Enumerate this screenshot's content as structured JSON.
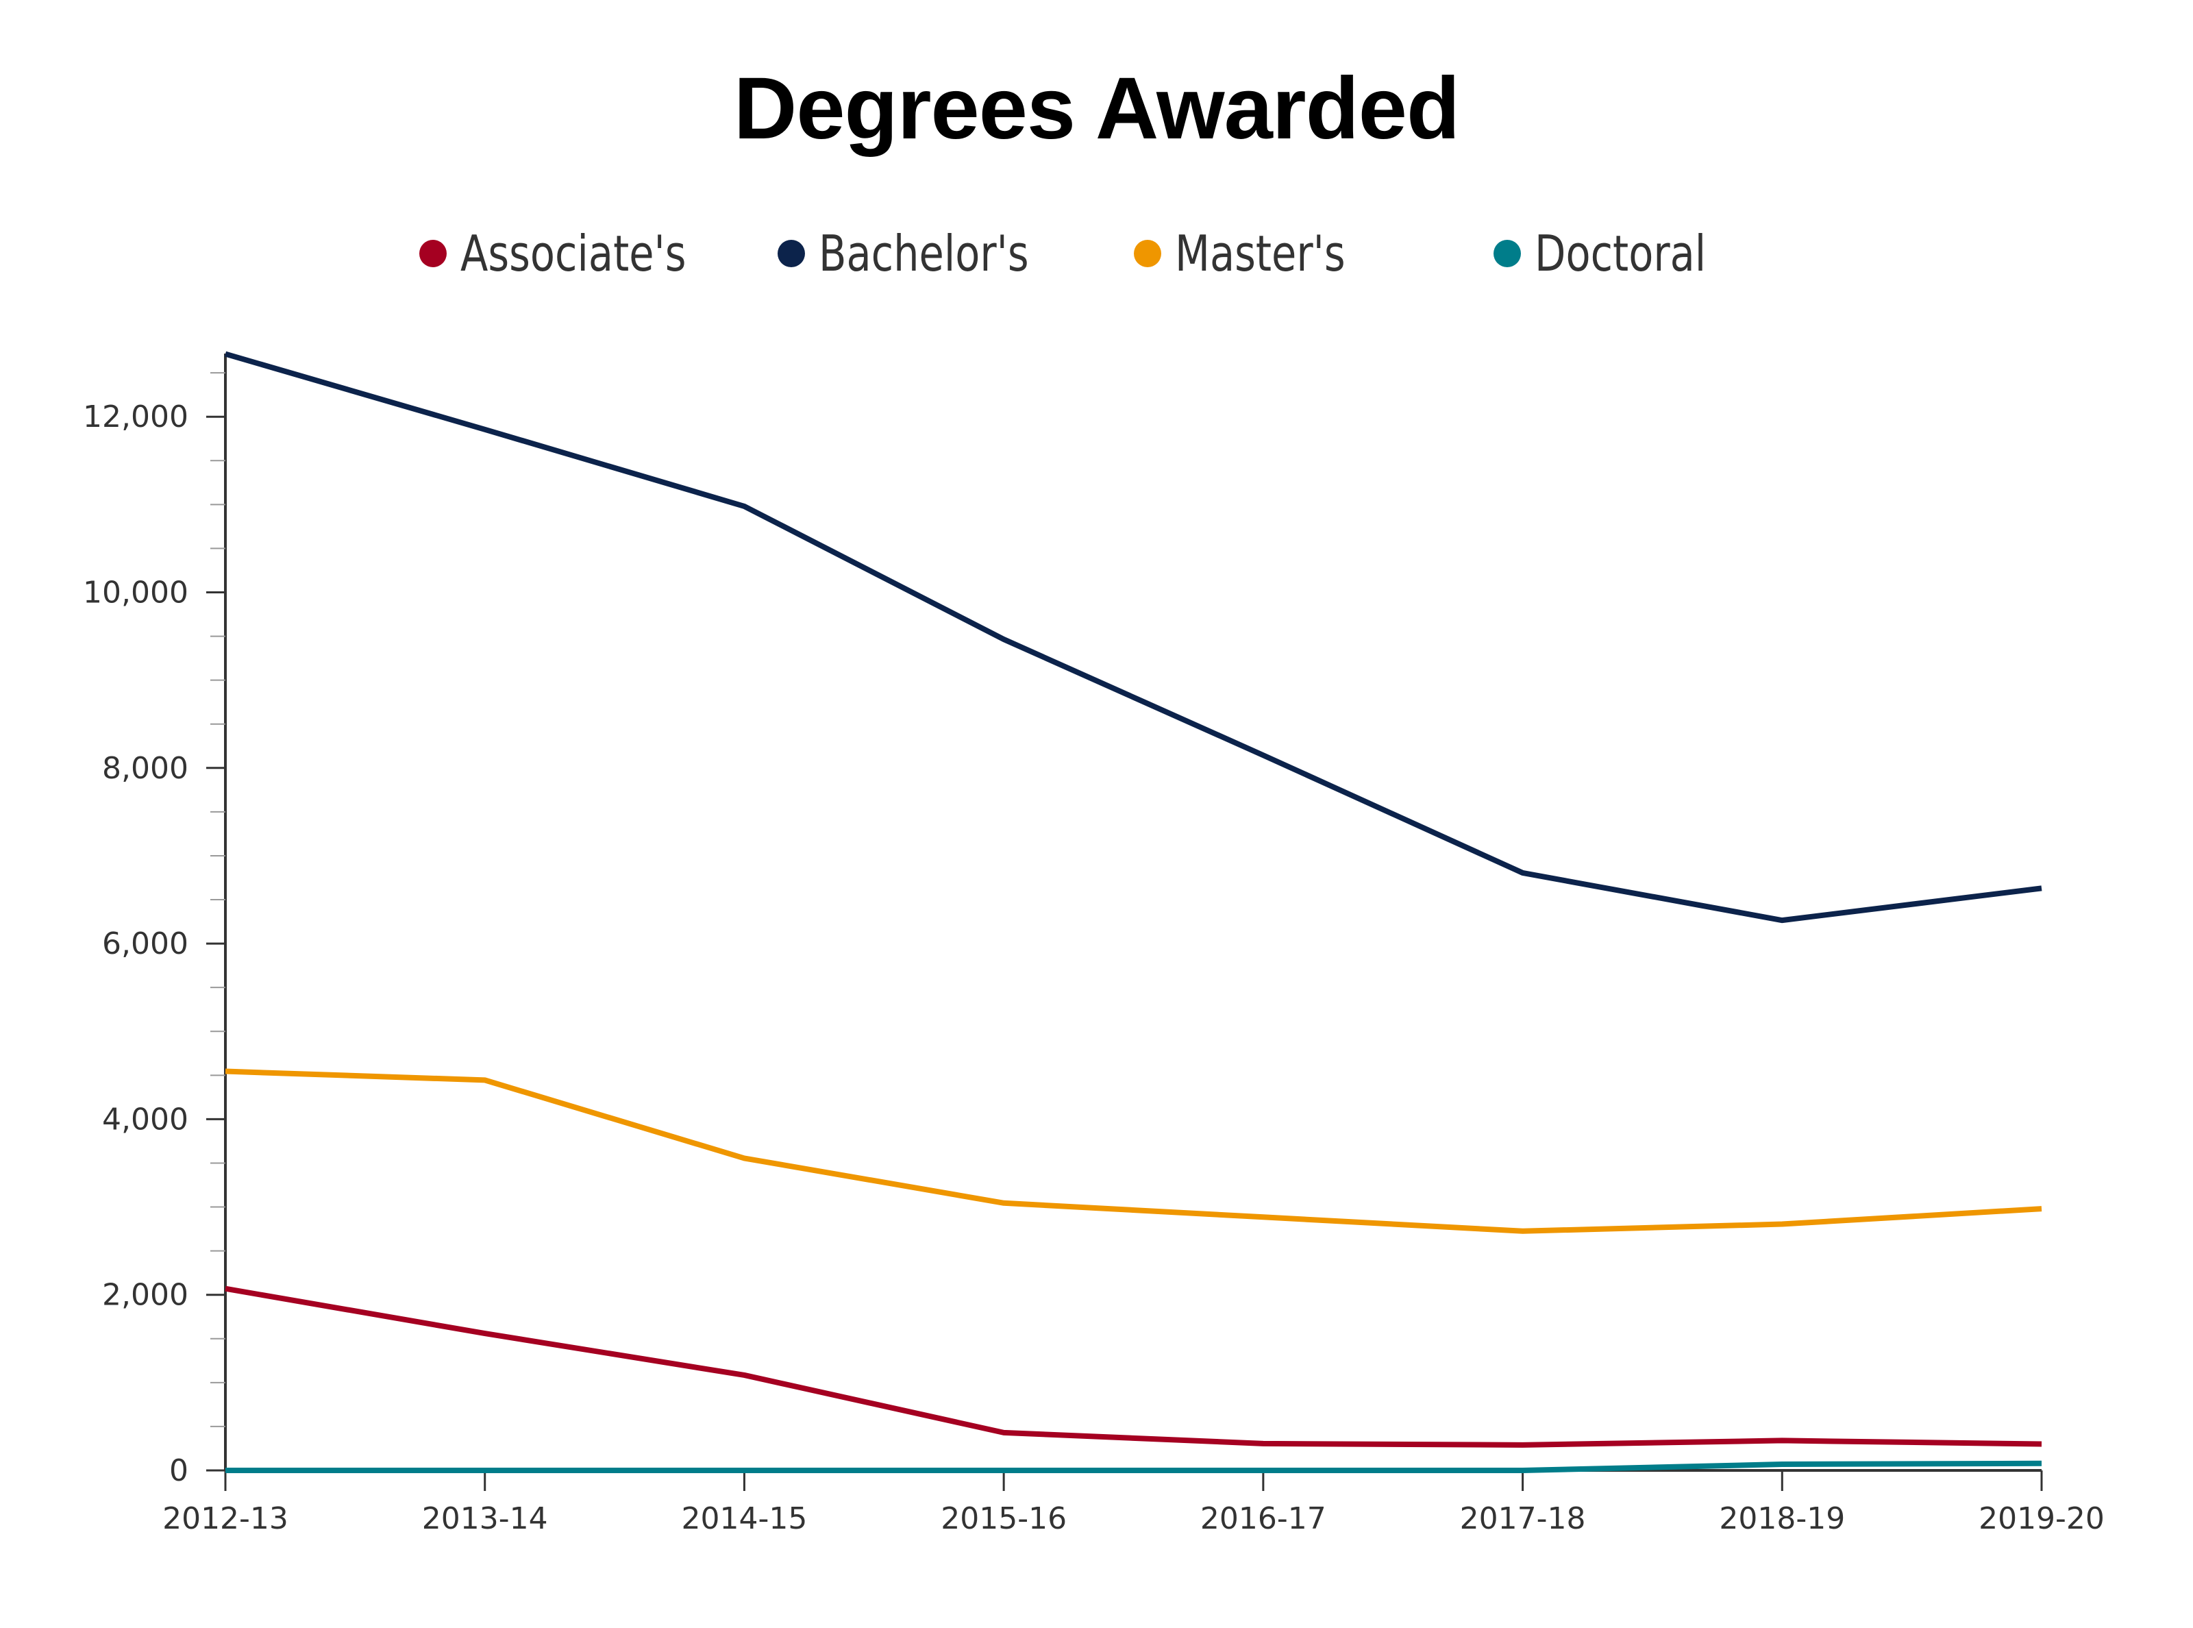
{
  "title": "Degrees Awarded",
  "legend": [
    {
      "label": "Associate's",
      "color": "#A50021"
    },
    {
      "label": "Bachelor's",
      "color": "#0C234B"
    },
    {
      "label": "Master's",
      "color": "#EF9600"
    },
    {
      "label": "Doctoral",
      "color": "#007D8A"
    }
  ],
  "axis": {
    "y_ticks": [
      "0",
      "2,000",
      "4,000",
      "6,000",
      "8,000",
      "10,000",
      "12,000"
    ],
    "x_ticks": [
      "2012-13",
      "2013-14",
      "2014-15",
      "2015-16",
      "2016-17",
      "2017-18",
      "2018-19",
      "2019-20"
    ]
  },
  "chart_data": {
    "type": "line",
    "title": "Degrees Awarded",
    "xlabel": "",
    "ylabel": "",
    "categories": [
      "2012-13",
      "2013-14",
      "2014-15",
      "2015-16",
      "2016-17",
      "2017-18",
      "2018-19",
      "2019-20"
    ],
    "series": [
      {
        "name": "Associate's",
        "color": "#A50021",
        "values": [
          2070,
          1560,
          1085,
          430,
          305,
          290,
          340,
          300
        ]
      },
      {
        "name": "Bachelor's",
        "color": "#0C234B",
        "values": [
          12715,
          11855,
          10980,
          9465,
          8145,
          6805,
          6265,
          6630
        ]
      },
      {
        "name": "Master's",
        "color": "#EF9600",
        "values": [
          4545,
          4445,
          3555,
          3045,
          2885,
          2725,
          2805,
          2980
        ]
      },
      {
        "name": "Doctoral",
        "color": "#007D8A",
        "values": [
          0,
          0,
          0,
          0,
          0,
          0,
          70,
          80
        ]
      }
    ],
    "ylim": [
      0,
      12715
    ],
    "y_major_ticks": [
      0,
      2000,
      4000,
      6000,
      8000,
      10000,
      12000
    ],
    "y_minor_step": 500,
    "grid": false,
    "legend_position": "top"
  }
}
